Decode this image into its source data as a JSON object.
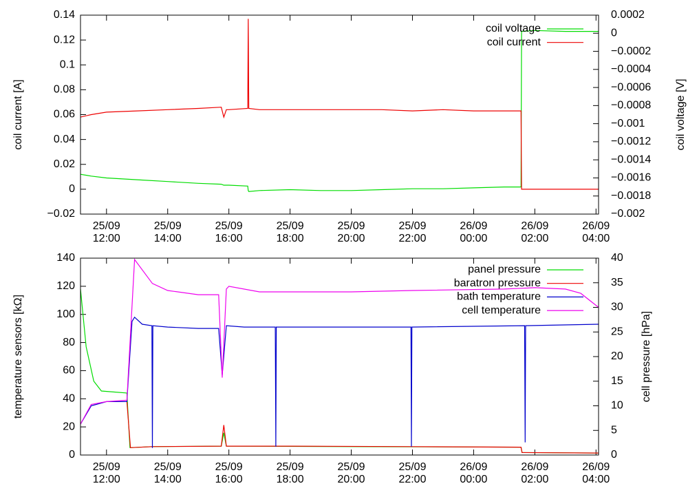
{
  "chart_data": [
    {
      "type": "line",
      "ylabel": "coil current [A]",
      "y2label": "coil voltage [V]",
      "xlim": [
        "25/09 11:09",
        "26/09 04:05"
      ],
      "xticks": [
        {
          "value": "25/09 12:00",
          "label": "25/09\n12:00"
        },
        {
          "value": "25/09 14:00",
          "label": "25/09\n14:00"
        },
        {
          "value": "25/09 16:00",
          "label": "25/09\n16:00"
        },
        {
          "value": "25/09 18:00",
          "label": "25/09\n18:00"
        },
        {
          "value": "25/09 20:00",
          "label": "25/09\n20:00"
        },
        {
          "value": "25/09 22:00",
          "label": "25/09\n22:00"
        },
        {
          "value": "26/09 00:00",
          "label": "26/09\n00:00"
        },
        {
          "value": "26/09 02:00",
          "label": "26/09\n02:00"
        },
        {
          "value": "26/09 04:00",
          "label": "26/09\n04:00"
        }
      ],
      "ylim": [
        -0.02,
        0.14
      ],
      "yticks": [
        {
          "value": -0.02,
          "label": "−0.02"
        },
        0,
        0.02,
        0.04,
        0.06,
        0.08,
        0.1,
        0.12,
        0.14
      ],
      "y2lim": [
        -0.002,
        0.0002
      ],
      "y2ticks": [
        {
          "value": -0.002,
          "label": "−0.002"
        },
        {
          "value": -0.0018,
          "label": "−0.0018"
        },
        {
          "value": -0.0016,
          "label": "−0.0016"
        },
        {
          "value": -0.0014,
          "label": "−0.0014"
        },
        {
          "value": -0.0012,
          "label": "−0.0012"
        },
        {
          "value": -0.001,
          "label": "−0.001"
        },
        {
          "value": -0.0008,
          "label": "−0.0008"
        },
        {
          "value": -0.0006,
          "label": "−0.0006"
        },
        {
          "value": -0.0004,
          "label": "−0.0004"
        },
        {
          "value": -0.0002,
          "label": "−0.0002"
        },
        0,
        0.0002
      ],
      "x": [
        "25/09 11:09",
        "25/09 11:30",
        "25/09 12:00",
        "25/09 13:00",
        "25/09 14:00",
        "25/09 15:00",
        "25/09 15:45",
        "25/09 15:50",
        "25/09 15:55",
        "25/09 16:00",
        "25/09 16:37",
        "25/09 16:38",
        "25/09 16:39",
        "25/09 17:00",
        "25/09 18:00",
        "25/09 19:00",
        "25/09 20:00",
        "25/09 21:00",
        "25/09 22:00",
        "25/09 23:00",
        "26/09 00:00",
        "26/09 01:00",
        "26/09 01:33",
        "26/09 01:34",
        "26/09 02:00",
        "26/09 03:00",
        "26/09 04:05"
      ],
      "series": [
        {
          "name": "coil voltage",
          "color": "#00dd00",
          "axis": "y2",
          "values": [
            -0.00156,
            -0.00158,
            -0.0016,
            -0.00162,
            -0.00164,
            -0.00166,
            -0.00167,
            -0.00168,
            -0.00168,
            -0.00168,
            -0.00169,
            -0.00174,
            -0.00175,
            -0.00174,
            -0.00173,
            -0.00174,
            -0.00174,
            -0.00173,
            -0.00172,
            -0.00172,
            -0.00171,
            -0.0017,
            -0.0017,
            2e-05,
            3e-05,
            2e-05,
            2e-05
          ]
        },
        {
          "name": "coil current",
          "color": "#ee0000",
          "values": [
            0.058,
            0.06,
            0.062,
            0.063,
            0.064,
            0.065,
            0.066,
            0.058,
            0.064,
            0.064,
            0.065,
            0.137,
            0.065,
            0.064,
            0.064,
            0.064,
            0.064,
            0.064,
            0.063,
            0.064,
            0.063,
            0.063,
            0.063,
            0,
            0,
            0,
            0
          ]
        }
      ]
    },
    {
      "type": "line",
      "ylabel": "temperature sensors [kΩ]",
      "y2label": "cell pressure [hPa]",
      "xlim": [
        "25/09 11:09",
        "26/09 04:05"
      ],
      "xticks": [
        {
          "value": "25/09 12:00",
          "label": "25/09\n12:00"
        },
        {
          "value": "25/09 14:00",
          "label": "25/09\n14:00"
        },
        {
          "value": "25/09 16:00",
          "label": "25/09\n16:00"
        },
        {
          "value": "25/09 18:00",
          "label": "25/09\n18:00"
        },
        {
          "value": "25/09 20:00",
          "label": "25/09\n20:00"
        },
        {
          "value": "25/09 22:00",
          "label": "25/09\n22:00"
        },
        {
          "value": "26/09 00:00",
          "label": "26/09\n00:00"
        },
        {
          "value": "26/09 02:00",
          "label": "26/09\n02:00"
        },
        {
          "value": "26/09 04:00",
          "label": "26/09\n04:00"
        }
      ],
      "ylim": [
        0,
        140
      ],
      "yticks": [
        0,
        20,
        40,
        60,
        80,
        100,
        120,
        140
      ],
      "y2lim": [
        0,
        40
      ],
      "y2ticks": [
        0,
        5,
        10,
        15,
        20,
        25,
        30,
        35,
        40
      ],
      "series": [
        {
          "name": "panel pressure",
          "color": "#00dd00",
          "axis": "y2",
          "x": [
            "25/09 11:09",
            "25/09 11:20",
            "25/09 11:35",
            "25/09 11:50",
            "25/09 12:40",
            "25/09 12:46",
            "25/09 13:30",
            "25/09 15:45",
            "25/09 15:50",
            "25/09 15:55",
            "26/09 01:33",
            "26/09 01:35",
            "26/09 04:05"
          ],
          "values": [
            33.7,
            22,
            15,
            13,
            12.6,
            1.5,
            1.7,
            1.8,
            4.5,
            1.8,
            1.6,
            0.5,
            0.4
          ]
        },
        {
          "name": "baratron pressure",
          "color": "#ee0000",
          "axis": "y2",
          "x": [
            "25/09 12:40",
            "25/09 12:47",
            "25/09 13:30",
            "25/09 15:45",
            "25/09 15:50",
            "25/09 15:55",
            "25/09 18:00",
            "25/09 22:00",
            "26/09 01:33",
            "26/09 01:35",
            "26/09 04:05"
          ],
          "values": [
            10.9,
            1.5,
            1.7,
            1.8,
            6.1,
            1.8,
            1.8,
            1.7,
            1.6,
            0.5,
            0.4
          ]
        },
        {
          "name": "bath temperature",
          "color": "#0000cc",
          "x": [
            "25/09 11:09",
            "25/09 11:30",
            "25/09 12:00",
            "25/09 12:40",
            "25/09 12:50",
            "25/09 12:55",
            "25/09 13:10",
            "25/09 13:29",
            "25/09 13:30",
            "25/09 13:31",
            "25/09 14:00",
            "25/09 15:00",
            "25/09 15:40",
            "25/09 15:47",
            "25/09 15:55",
            "25/09 16:30",
            "25/09 17:31",
            "25/09 17:32",
            "25/09 17:33",
            "25/09 20:00",
            "25/09 21:57",
            "25/09 21:58",
            "25/09 21:59",
            "26/09 01:40",
            "26/09 01:41",
            "26/09 01:42",
            "26/09 04:05"
          ],
          "values": [
            22,
            35,
            38,
            38,
            95,
            98,
            93,
            92,
            5,
            92,
            91,
            90,
            90,
            57,
            92,
            91,
            91,
            6,
            91,
            91,
            91,
            6,
            91,
            92,
            9,
            92,
            93
          ]
        },
        {
          "name": "cell temperature",
          "color": "#ee00ee",
          "x": [
            "25/09 11:09",
            "25/09 11:30",
            "25/09 12:00",
            "25/09 12:40",
            "25/09 12:55",
            "25/09 13:30",
            "25/09 14:00",
            "25/09 15:00",
            "25/09 15:40",
            "25/09 15:47",
            "25/09 15:55",
            "25/09 16:00",
            "25/09 17:00",
            "25/09 20:00",
            "25/09 22:00",
            "26/09 01:00",
            "26/09 02:00",
            "26/09 03:00",
            "26/09 03:30",
            "26/09 04:05"
          ],
          "values": [
            22,
            36,
            38,
            39,
            139,
            122,
            117,
            114,
            114,
            55,
            118,
            120,
            116,
            116,
            117,
            118,
            119,
            118,
            115,
            105
          ]
        }
      ]
    }
  ]
}
